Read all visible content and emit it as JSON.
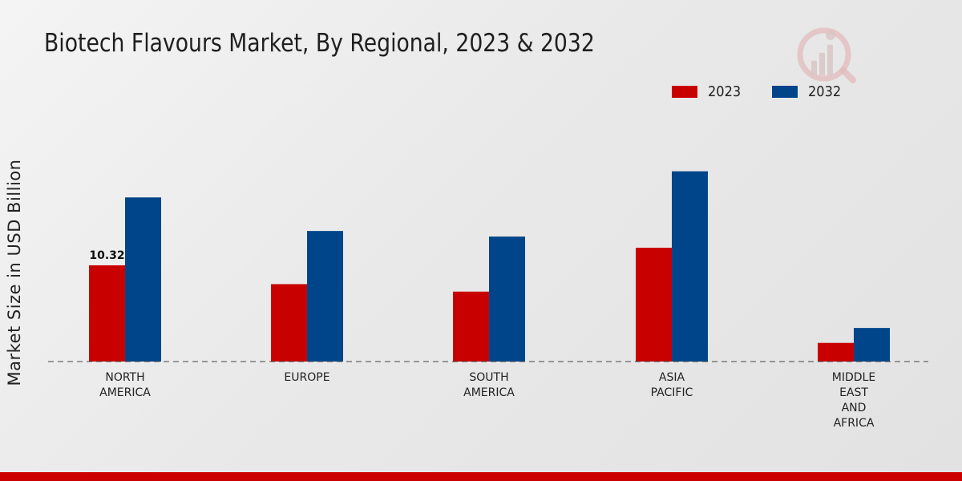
{
  "title": "Biotech Flavours Market, By Regional, 2023 & 2032",
  "colors": {
    "s2023": "#c90000",
    "s2032": "#00458a",
    "footer": "#cc0000"
  },
  "chart_data": {
    "type": "bar",
    "title": "Biotech Flavours Market, By Regional, 2023 & 2032",
    "xlabel": "",
    "ylabel": "Market Size in USD Billion",
    "categories": [
      "NORTH\nAMERICA",
      "EUROPE",
      "SOUTH\nAMERICA",
      "ASIA\nPACIFIC",
      "MIDDLE\nEAST\nAND\nAFRICA"
    ],
    "series": [
      {
        "name": "2023",
        "values": [
          10.32,
          8.3,
          7.5,
          12.2,
          2.0
        ]
      },
      {
        "name": "2032",
        "values": [
          17.6,
          14.0,
          13.4,
          20.4,
          3.6
        ]
      }
    ],
    "data_labels": [
      {
        "series": "2023",
        "index": 0,
        "text": "10.32"
      }
    ],
    "ylim": [
      0,
      30
    ],
    "grid": false,
    "legend": "top-right"
  }
}
